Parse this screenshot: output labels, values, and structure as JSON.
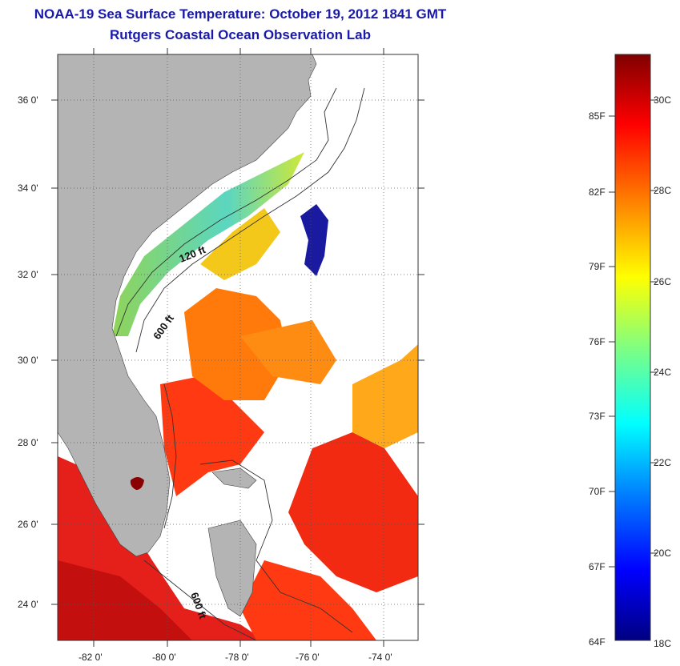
{
  "title_line1": "NOAA-19 Sea Surface Temperature:  October 19, 2012 1841 GMT",
  "title_line2": "Rutgers Coastal Ocean Observation Lab",
  "lat_ticks": [
    "36 0'",
    "34 0'",
    "32 0'",
    "30 0'",
    "28 0'",
    "26 0'",
    "24 0'"
  ],
  "lon_ticks": [
    "-82 0'",
    "-80 0'",
    "-78 0'",
    "-76 0'",
    "-74 0'"
  ],
  "contour_labels": {
    "shelf_120": "120 ft",
    "shelf_600": "600 ft",
    "keys_600": "600 ft"
  },
  "colorbar": {
    "fahrenheit_labels": [
      "85F",
      "82F",
      "79F",
      "76F",
      "73F",
      "70F",
      "67F",
      "64F"
    ],
    "celsius_labels": [
      "30C",
      "28C",
      "26C",
      "24C",
      "22C",
      "20C",
      "18C"
    ],
    "range_c": [
      18,
      31
    ],
    "colors": [
      "#000080",
      "#0000ff",
      "#0080ff",
      "#00ffff",
      "#80ff80",
      "#ffff00",
      "#ff8000",
      "#ff0000",
      "#800000"
    ]
  },
  "colors": {
    "land": "#b4b4b4",
    "title": "#1a1aa8",
    "cloud_gap": "#ffffff"
  }
}
